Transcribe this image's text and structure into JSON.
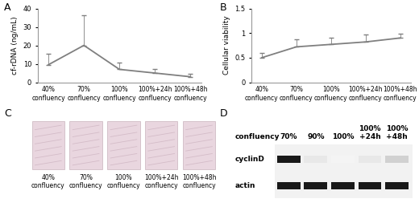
{
  "chart_data": [
    {
      "type": "line",
      "title": "A",
      "y_label": "cf-rDNA (ng/mL)",
      "categories": [
        "40%\nconfluency",
        "70%\nconfluency",
        "100%\nconfluency",
        "100%+24h\nconfluency",
        "100%+48h\nconfluency"
      ],
      "values": [
        9.5,
        20,
        7,
        5,
        3
      ],
      "errors": [
        6,
        16.5,
        3.5,
        2,
        1.5
      ],
      "color": "#7f7f7f",
      "ylim": [
        0,
        40
      ],
      "yticks": [
        0,
        10,
        20,
        30,
        40
      ]
    },
    {
      "type": "line",
      "title": "B",
      "y_label": "Cellular viability",
      "categories": [
        "40%\nconfluency",
        "70%\nconfluency",
        "100%\nconfluency",
        "100%+24h\nconfluency",
        "100%+48h\nconfluency"
      ],
      "values": [
        0.5,
        0.72,
        0.77,
        0.82,
        0.9
      ],
      "errors": [
        0.1,
        0.15,
        0.13,
        0.15,
        0.08
      ],
      "color": "#7f7f7f",
      "ylim": [
        0,
        1.5
      ],
      "yticks": [
        0,
        0.5,
        1,
        1.5
      ]
    }
  ],
  "image_panel": {
    "title": "C",
    "images": [
      "40%\nconfluency",
      "70%\nconfluency",
      "100%\nconfluency",
      "100%+24h\nconfluency",
      "100%+48h\nconfluency"
    ]
  },
  "blot_panel": {
    "title": "D",
    "header": "confluency",
    "lanes": [
      "70%",
      "90%",
      "100%",
      "100%\n+24h",
      "100%\n+48h"
    ],
    "rows": [
      {
        "label": "cyclinD",
        "band_intensity": [
          1,
          0.1,
          0.05,
          0.1,
          0.2
        ]
      },
      {
        "label": "actin",
        "band_intensity": [
          1,
          1,
          1,
          1,
          1
        ]
      }
    ]
  }
}
